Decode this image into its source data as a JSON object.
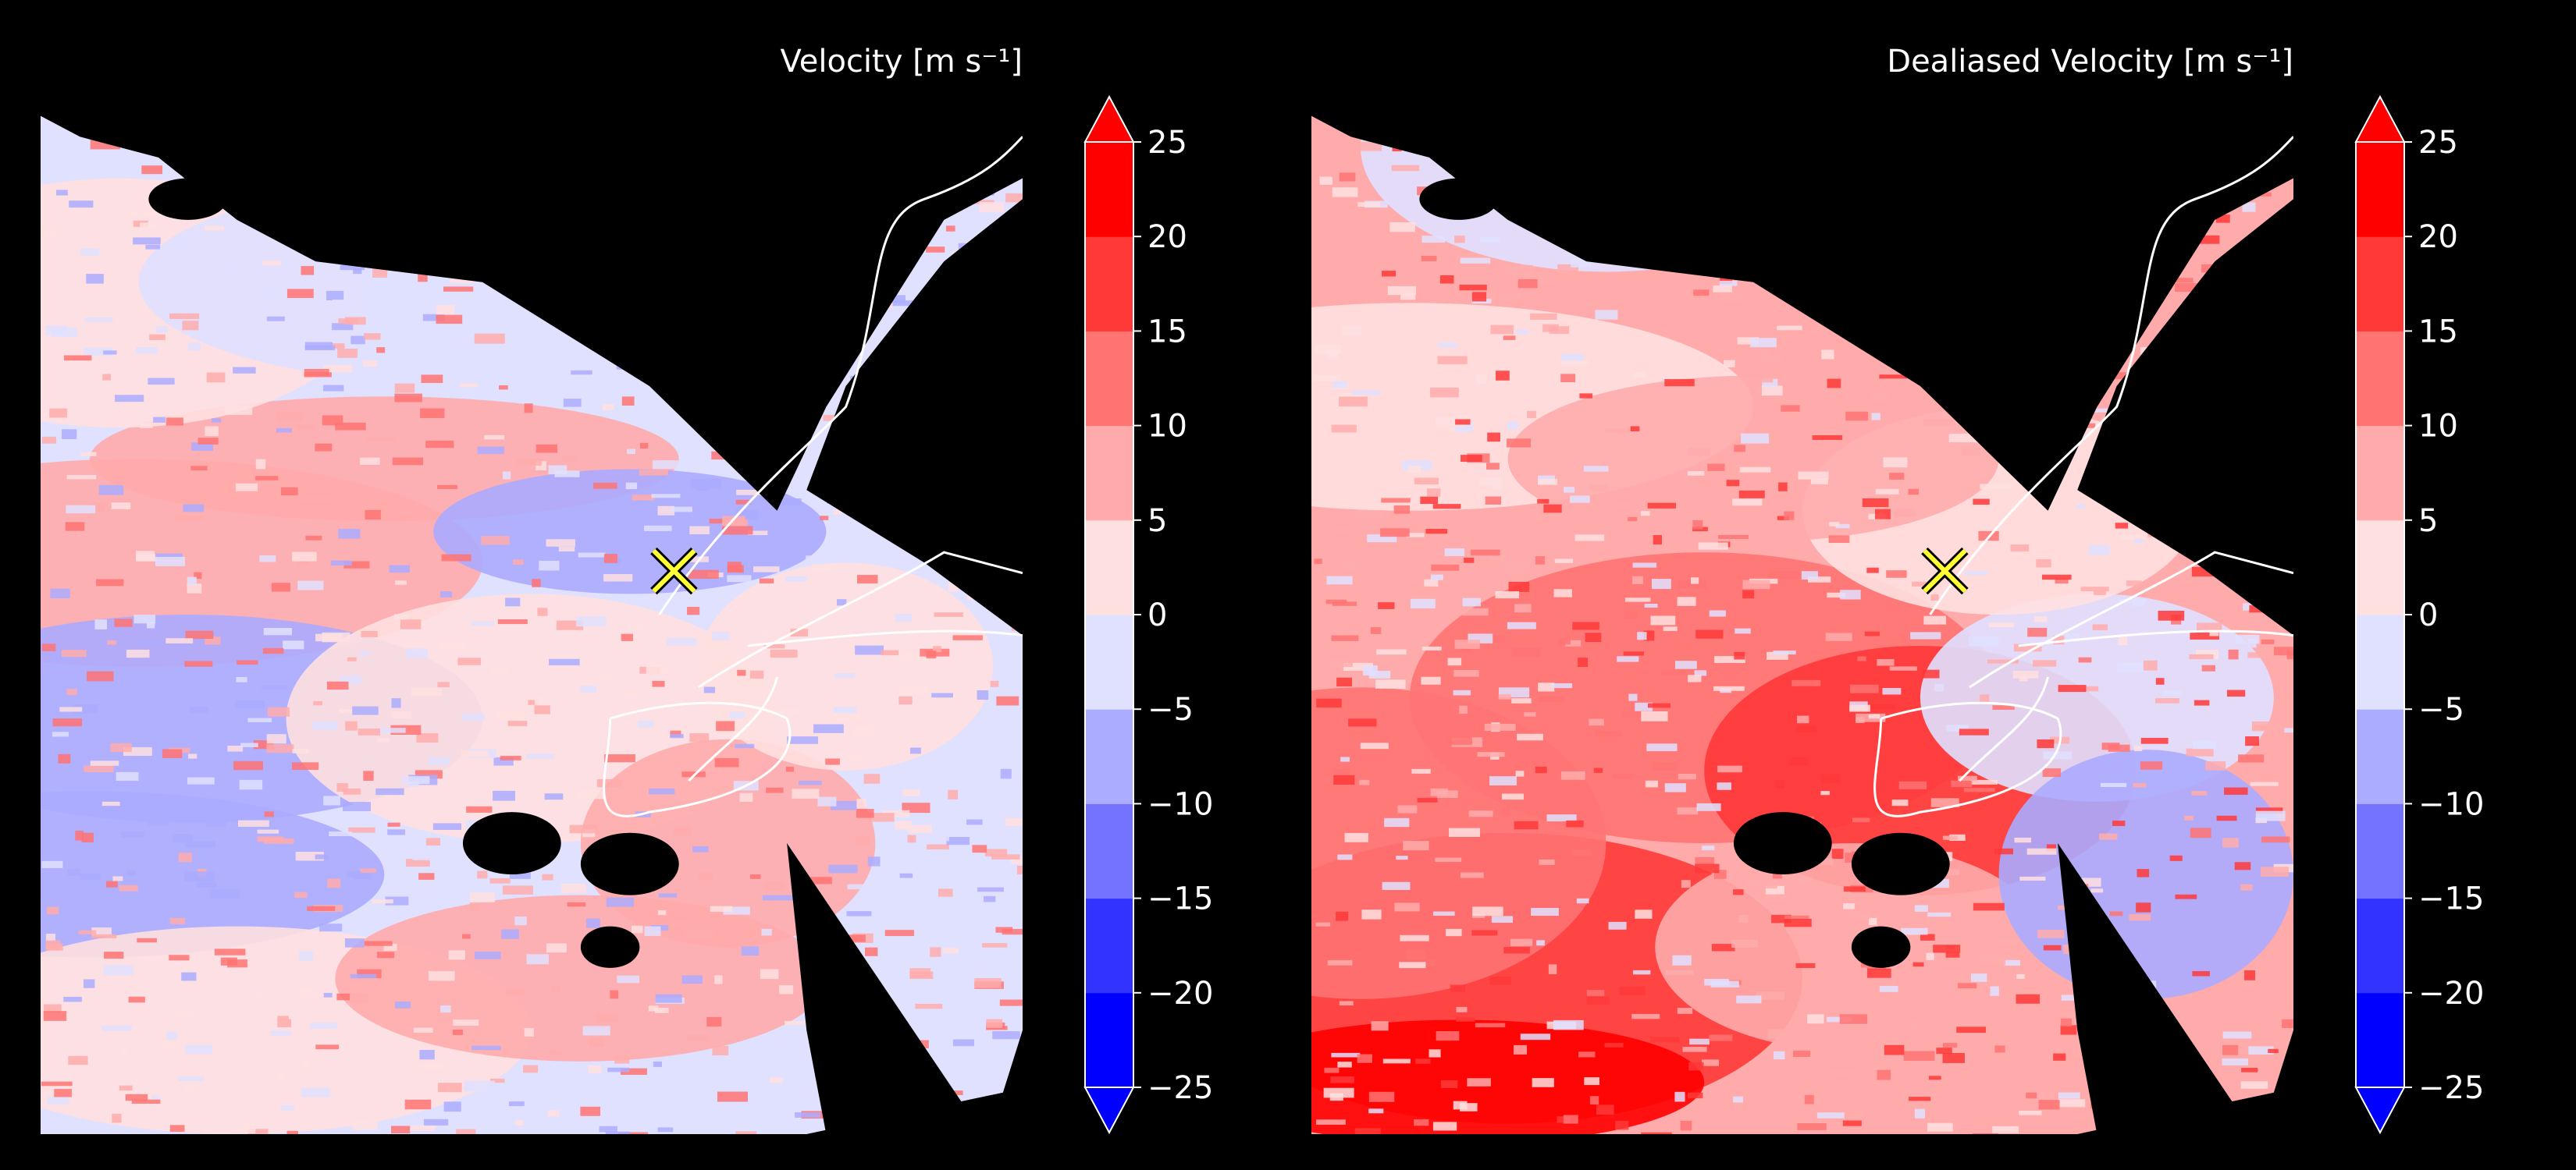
{
  "chart_data": [
    {
      "type": "heatmap",
      "title": "Velocity [m s⁻¹]",
      "colorbar": {
        "levels": [
          -25,
          -20,
          -15,
          -10,
          -5,
          0,
          5,
          10,
          15,
          20,
          25
        ],
        "tick_labels": [
          "25",
          "20",
          "15",
          "10",
          "5",
          "0",
          "−5",
          "−10",
          "−15",
          "−20",
          "−25"
        ],
        "colors": [
          "#0000ff",
          "#3333ff",
          "#7373ff",
          "#ababff",
          "#e0e0ff",
          "#ffe0e0",
          "#ffabab",
          "#ff7373",
          "#ff3838",
          "#ff0000"
        ],
        "extend": "both"
      },
      "field": "aliased",
      "overlay": [
        "coastline",
        "radar-site-marker"
      ]
    },
    {
      "type": "heatmap",
      "title": "Dealiased Velocity [m s⁻¹]",
      "colorbar": {
        "levels": [
          -25,
          -20,
          -15,
          -10,
          -5,
          0,
          5,
          10,
          15,
          20,
          25
        ],
        "tick_labels": [
          "25",
          "20",
          "15",
          "10",
          "5",
          "0",
          "−5",
          "−10",
          "−15",
          "−20",
          "−25"
        ],
        "colors": [
          "#0000ff",
          "#3333ff",
          "#7373ff",
          "#ababff",
          "#e0e0ff",
          "#ffe0e0",
          "#ffabab",
          "#ff7373",
          "#ff3838",
          "#ff0000"
        ],
        "extend": "both"
      },
      "field": "dealiased",
      "overlay": [
        "coastline",
        "radar-site-marker"
      ]
    }
  ],
  "colors": {
    "background": "#000000",
    "text": "#ffffff",
    "coastline": "#ffffff",
    "marker_fill": "#ffff33",
    "marker_edge": "#000000"
  }
}
